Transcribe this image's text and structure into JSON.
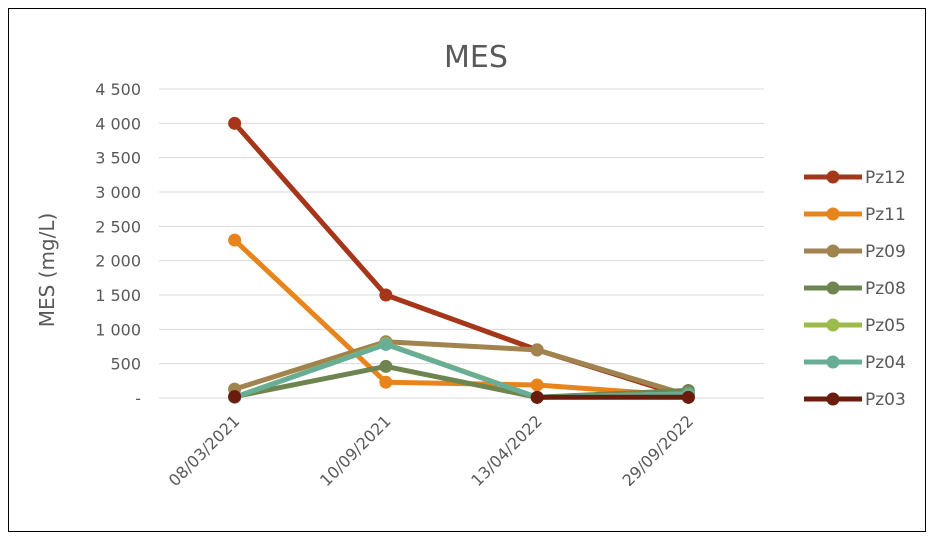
{
  "chart_data": {
    "type": "line",
    "title": "MES",
    "xlabel": "",
    "ylabel": "MES (mg/L)",
    "ylim": [
      0,
      4500
    ],
    "yticks": [
      {
        "value": 0,
        "label": "-"
      },
      {
        "value": 500,
        "label": "500"
      },
      {
        "value": 1000,
        "label": "1 000"
      },
      {
        "value": 1500,
        "label": "1 500"
      },
      {
        "value": 2000,
        "label": "2 000"
      },
      {
        "value": 2500,
        "label": "2 500"
      },
      {
        "value": 3000,
        "label": "3 000"
      },
      {
        "value": 3500,
        "label": "3 500"
      },
      {
        "value": 4000,
        "label": "4 000"
      },
      {
        "value": 4500,
        "label": "4 500"
      }
    ],
    "categories": [
      "08/03/2021",
      "10/09/2021",
      "13/04/2022",
      "29/09/2022"
    ],
    "grid": true,
    "legend_position": "right",
    "series": [
      {
        "name": "Pz12",
        "color": "#A5361A",
        "values": [
          4000,
          1500,
          700,
          10
        ]
      },
      {
        "name": "Pz11",
        "color": "#E8841C",
        "values": [
          2300,
          230,
          190,
          30
        ]
      },
      {
        "name": "Pz09",
        "color": "#A0834E",
        "values": [
          130,
          820,
          700,
          40
        ]
      },
      {
        "name": "Pz08",
        "color": "#6E854F",
        "values": [
          20,
          460,
          10,
          110
        ]
      },
      {
        "name": "Pz05",
        "color": "#9DBB4B",
        "values": [
          10,
          790,
          10,
          60
        ]
      },
      {
        "name": "Pz04",
        "color": "#68AE97",
        "values": [
          10,
          780,
          10,
          60
        ]
      },
      {
        "name": "Pz03",
        "color": "#6A1D0C",
        "values": [
          20,
          null,
          10,
          10
        ]
      }
    ]
  }
}
